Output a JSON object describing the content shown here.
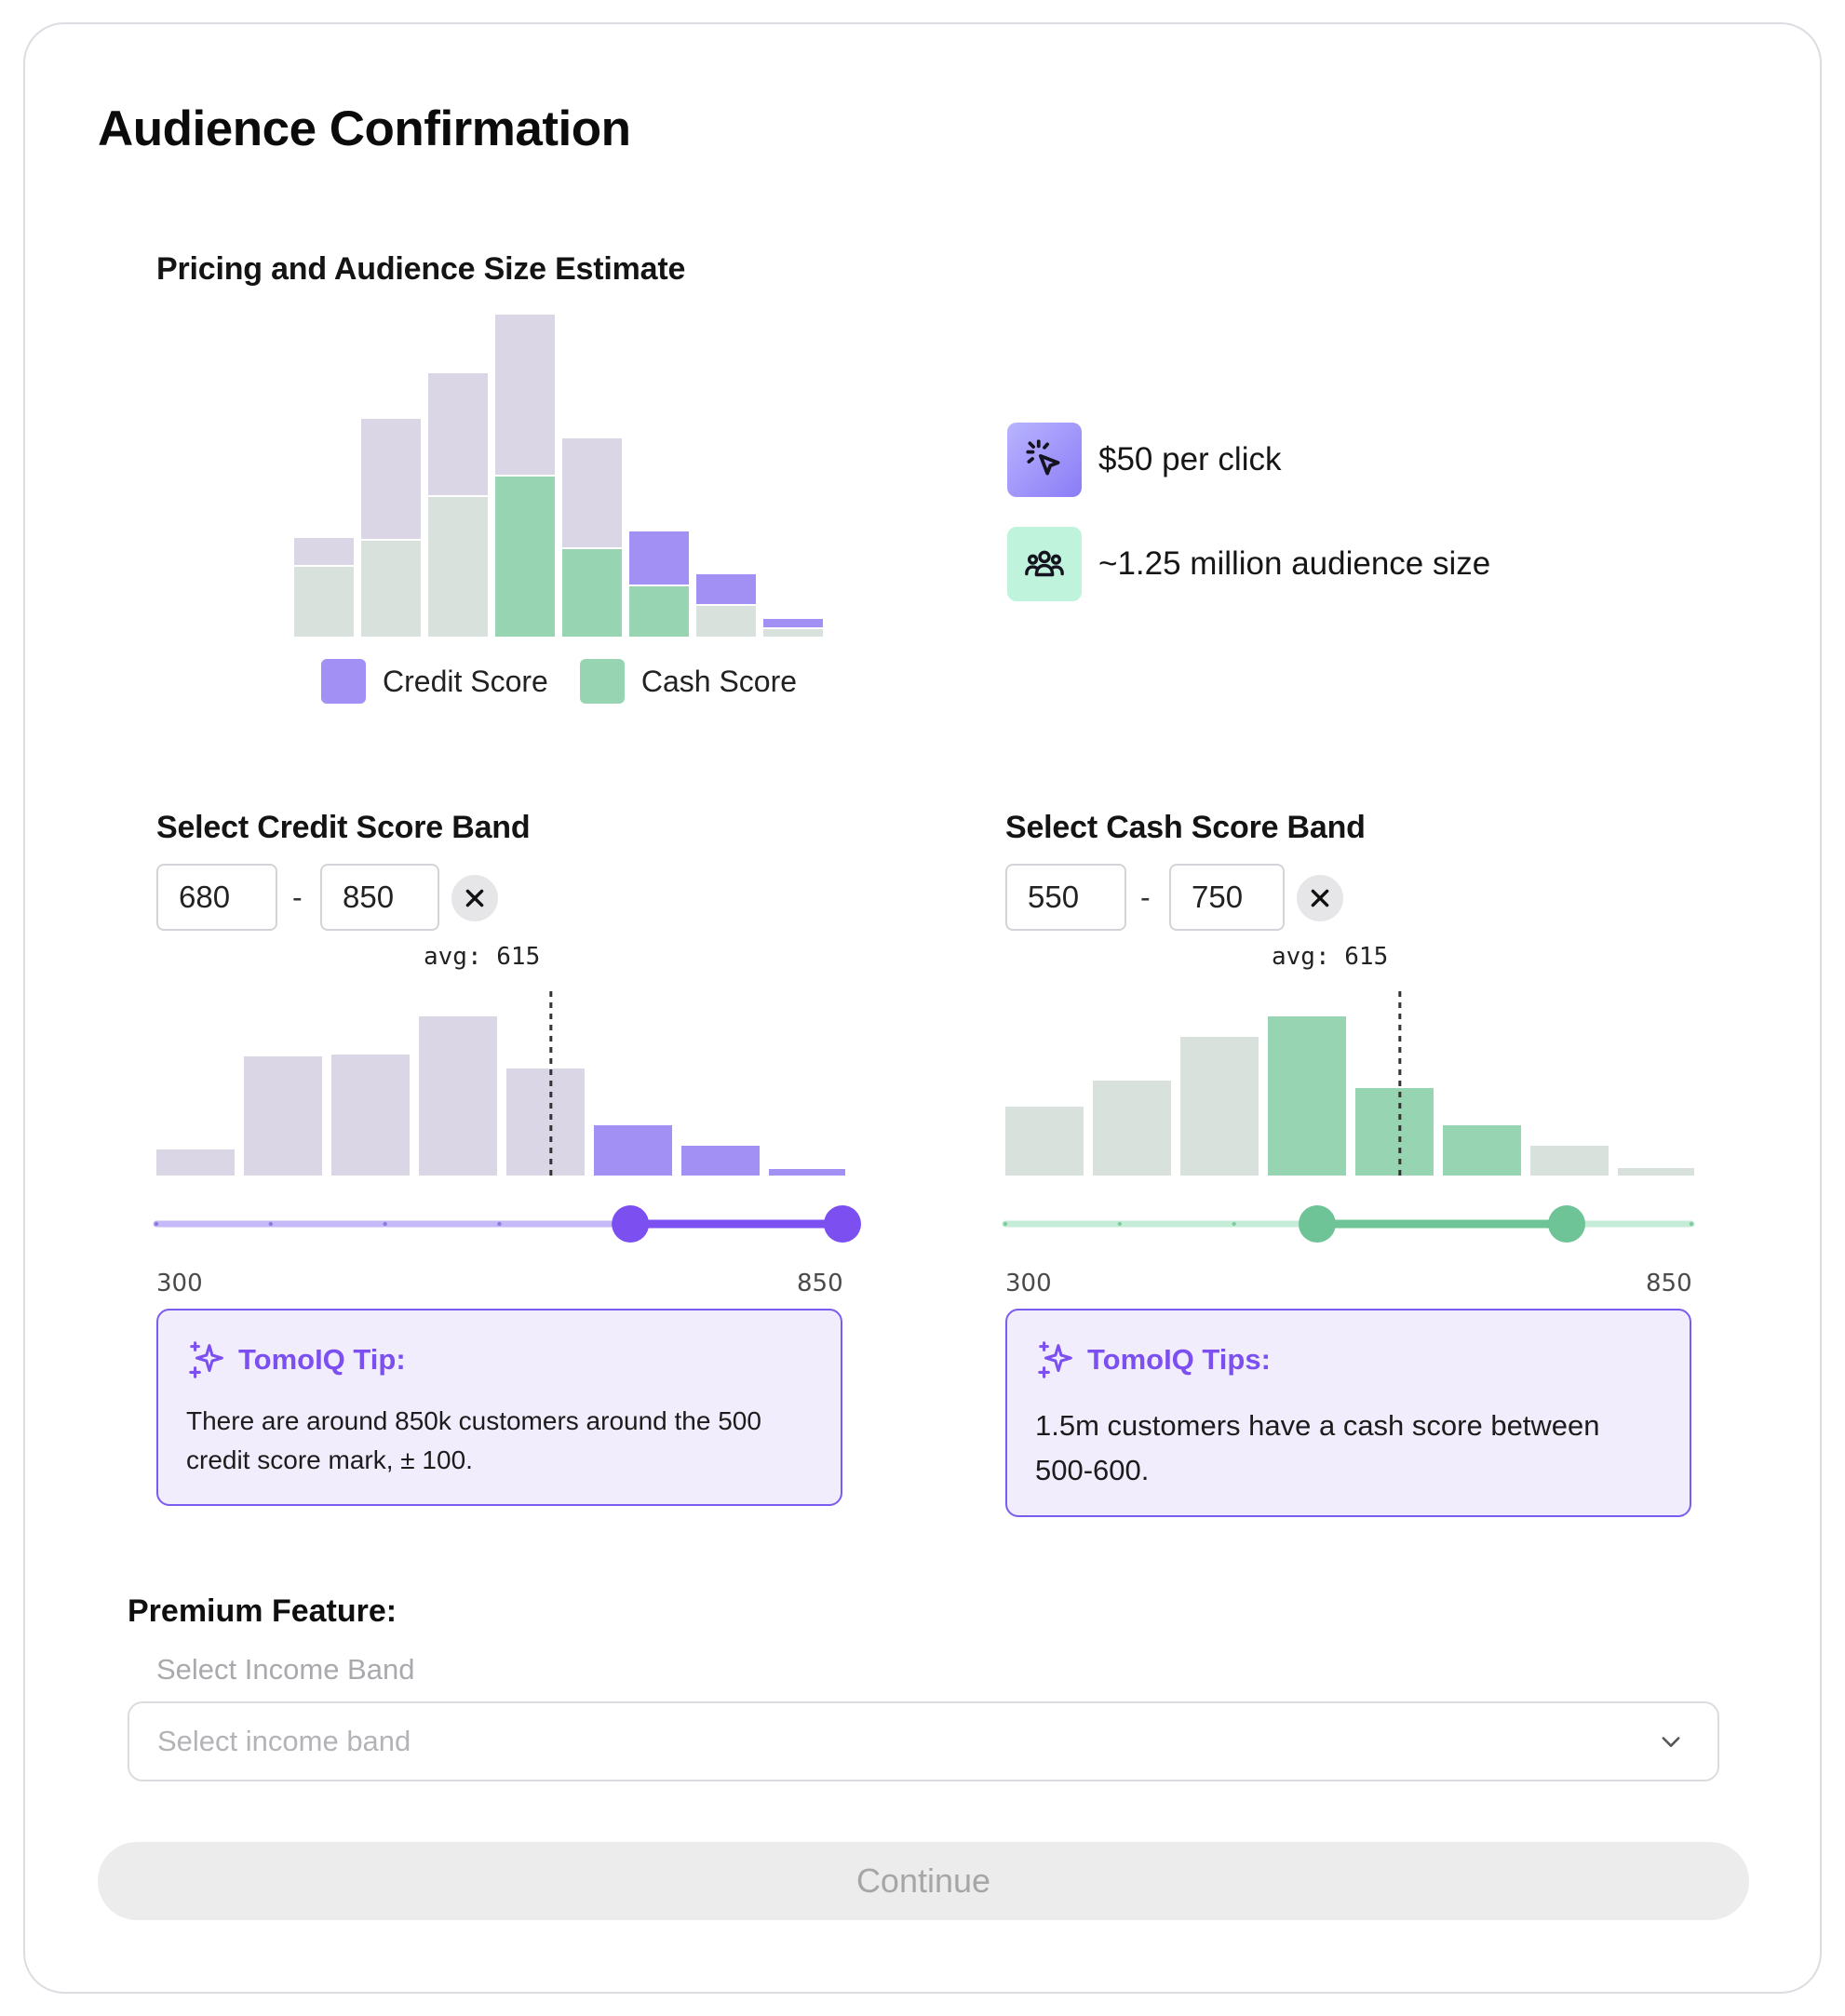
{
  "page": {
    "title": "Audience Confirmation"
  },
  "estimate": {
    "title": "Pricing and Audience Size Estimate",
    "legend": [
      {
        "label": "Credit Score",
        "color": "#a390f5"
      },
      {
        "label": "Cash Score",
        "color": "#97d5b2"
      }
    ],
    "metrics": {
      "price": "$50 per click",
      "price_icon": "cursor-click-icon",
      "audience": "~1.25 million audience size",
      "audience_icon": "people-group-icon"
    }
  },
  "credit": {
    "title": "Select Credit Score Band",
    "min_value": "680",
    "max_value": "850",
    "separator": "-",
    "avg_label": "avg: 615",
    "range_min_label": "300",
    "range_max_label": "850",
    "tip_title": "TomoIQ Tip:",
    "tip_text": "There are around 850k customers around the 500 credit score mark, ± 100."
  },
  "cash": {
    "title": "Select Cash Score Band",
    "min_value": "550",
    "max_value": "750",
    "separator": "-",
    "avg_label": "avg: 615",
    "range_min_label": "300",
    "range_max_label": "850",
    "tip_title": "TomoIQ Tips:",
    "tip_text": "1.5m customers have a cash score between 500-600."
  },
  "premium": {
    "label": "Premium Feature:",
    "income_label": "Select Income Band",
    "income_placeholder": "Select income band"
  },
  "actions": {
    "continue_label": "Continue"
  },
  "colors": {
    "credit_active": "#a390f5",
    "credit_inactive": "#dad6e6",
    "cash_active": "#97d5b2",
    "cash_inactive": "#d9e1dc",
    "credit_slider": "#7b4ff0",
    "cash_slider": "#6ec496"
  },
  "chart_data": [
    {
      "type": "bar",
      "title": "Pricing and Audience Size Estimate",
      "stacked": true,
      "categories": [
        "1",
        "2",
        "3",
        "4",
        "5",
        "6",
        "7",
        "8"
      ],
      "series": [
        {
          "name": "Cash Score",
          "values": [
            75,
            103,
            150,
            172,
            94,
            54,
            33,
            8
          ]
        },
        {
          "name": "Credit Score",
          "values": [
            29,
            129,
            131,
            172,
            117,
            57,
            32,
            9
          ]
        }
      ],
      "active": {
        "Credit Score": [
          false,
          false,
          false,
          false,
          false,
          true,
          true,
          true
        ],
        "Cash Score": [
          false,
          false,
          false,
          true,
          true,
          true,
          false,
          false
        ]
      },
      "ylim": [
        0,
        345
      ]
    },
    {
      "type": "bar",
      "title": "Select Credit Score Band",
      "categories": [
        "1",
        "2",
        "3",
        "4",
        "5",
        "6",
        "7",
        "8"
      ],
      "values": [
        28,
        128,
        130,
        171,
        115,
        54,
        32,
        7
      ],
      "active": [
        false,
        false,
        false,
        false,
        false,
        true,
        true,
        true
      ],
      "ylim": [
        0,
        171
      ],
      "xlim": [
        300,
        850
      ],
      "average": 615,
      "selected_range": [
        680,
        850
      ]
    },
    {
      "type": "bar",
      "title": "Select Cash Score Band",
      "categories": [
        "1",
        "2",
        "3",
        "4",
        "5",
        "6",
        "7",
        "8"
      ],
      "values": [
        74,
        102,
        149,
        171,
        94,
        54,
        32,
        8
      ],
      "active": [
        false,
        false,
        false,
        true,
        true,
        true,
        false,
        false
      ],
      "ylim": [
        0,
        171
      ],
      "xlim": [
        300,
        850
      ],
      "average": 615,
      "selected_range": [
        550,
        750
      ]
    }
  ]
}
